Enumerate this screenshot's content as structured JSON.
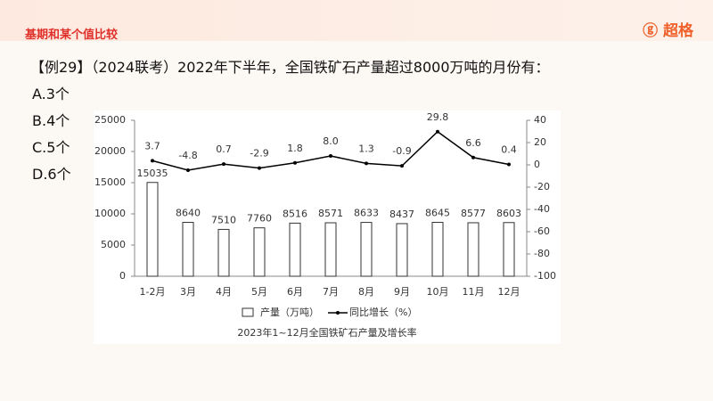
{
  "header": {
    "title": "基期和某个值比较",
    "logo": "超格"
  },
  "question": "【例29】（2024联考）2022年下半年，全国铁矿石产量超过8000万吨的月份有：",
  "options": [
    "A.3个",
    "B.4个",
    "C.5个",
    "D.6个"
  ],
  "chart_data": {
    "type": "bar",
    "title": "2023年1~12月全国铁矿石产量及增长率",
    "categories": [
      "1-2月",
      "3月",
      "4月",
      "5月",
      "6月",
      "7月",
      "8月",
      "9月",
      "10月",
      "11月",
      "12月"
    ],
    "series": [
      {
        "name": "产量（万吨）",
        "type": "bar",
        "color": "#ffffff",
        "values": [
          15035,
          8640,
          7510,
          7760,
          8516,
          8571,
          8633,
          8437,
          8645,
          8577,
          8603
        ]
      },
      {
        "name": "同比增长（%）",
        "type": "line",
        "axis": "y2",
        "color": "#000000",
        "values": [
          3.7,
          -4.8,
          0.7,
          -2.9,
          1.8,
          8.0,
          1.3,
          -0.9,
          29.8,
          6.6,
          0.4
        ],
        "value_labels": [
          "3.7",
          "-4.8",
          "0.7",
          "-2.9",
          "1.8",
          "8.0",
          "1.3",
          "-0.9",
          "29.8",
          "6.6",
          "0.4"
        ]
      }
    ],
    "ylim": [
      0,
      25000
    ],
    "yticks": [
      0,
      5000,
      10000,
      15000,
      20000,
      25000
    ],
    "y2lim": [
      -100,
      40
    ],
    "y2ticks": [
      -100,
      -80,
      -60,
      -40,
      -20,
      0,
      20,
      40
    ],
    "grid": false
  }
}
